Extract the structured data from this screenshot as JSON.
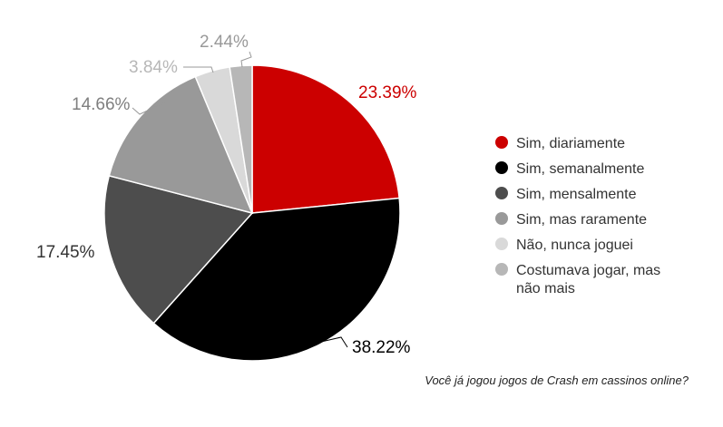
{
  "chart_data": {
    "type": "pie",
    "title": "Você já jogou jogos de Crash em cassinos online?",
    "categories": [
      "Sim, diariamente",
      "Sim, semanalmente",
      "Sim, mensalmente",
      "Sim, mas raramente",
      "Não, nunca joguei",
      "Costumava jogar, mas não mais"
    ],
    "legend_lines": [
      [
        "Sim, diariamente"
      ],
      [
        "Sim, semanalmente"
      ],
      [
        "Sim, mensalmente"
      ],
      [
        "Sim, mas raramente"
      ],
      [
        "Não, nunca joguei"
      ],
      [
        "Costumava jogar, mas",
        "não mais"
      ]
    ],
    "values": [
      23.39,
      38.22,
      17.45,
      14.66,
      3.84,
      2.44
    ],
    "labels": [
      "23.39%",
      "38.22%",
      "17.45%",
      "14.66%",
      "3.84%",
      "2.44%"
    ],
    "colors": [
      "#cc0000",
      "#000000",
      "#4d4d4d",
      "#999999",
      "#d9d9d9",
      "#b7b7b7"
    ],
    "label_colors": [
      "#cc0000",
      "#000000",
      "#333333",
      "#7f7f7f",
      "#b7b7b7",
      "#999999"
    ],
    "legend_position": "right"
  }
}
